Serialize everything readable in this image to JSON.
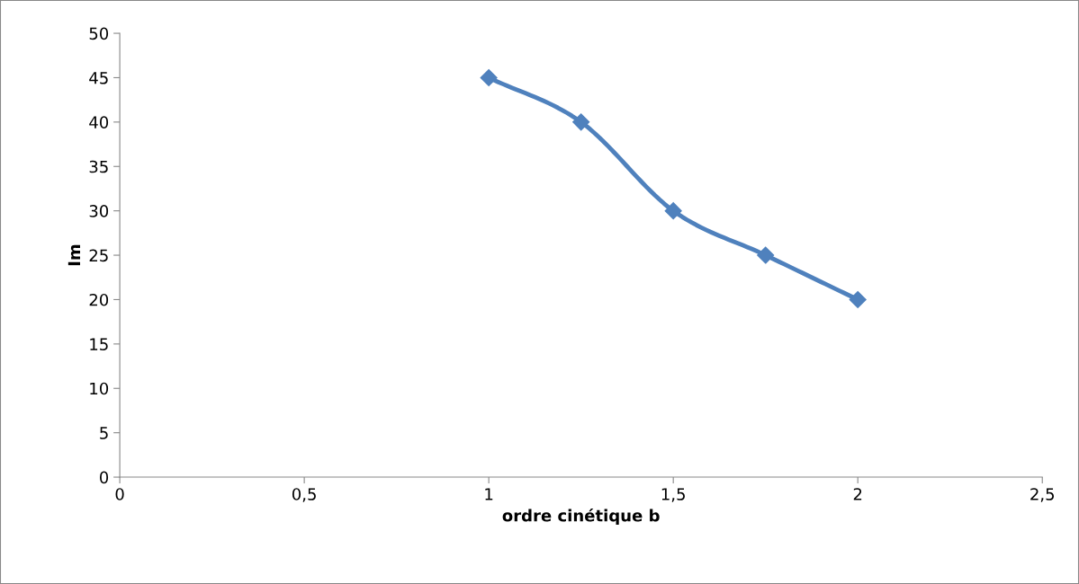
{
  "chart_data": {
    "type": "line",
    "xlabel": "ordre cinétique b",
    "ylabel": "Im",
    "x": [
      1,
      1.25,
      1.5,
      1.75,
      2
    ],
    "series": [
      {
        "color": "#4f81bd",
        "values": [
          45,
          40,
          30,
          25,
          20
        ]
      }
    ],
    "xlim": [
      0,
      2.5
    ],
    "xticks": [
      0,
      {
        "value": 0.5,
        "label": "0,5"
      },
      1,
      {
        "value": 1.5,
        "label": "1,5"
      },
      2,
      {
        "value": 2.5,
        "label": "2,5"
      }
    ],
    "ylim": [
      0,
      50
    ],
    "yticks": [
      0,
      5,
      10,
      15,
      20,
      25,
      30,
      35,
      40,
      45,
      50
    ],
    "marker": "diamond",
    "line_style": "solid",
    "grid": false,
    "legend": false
  }
}
